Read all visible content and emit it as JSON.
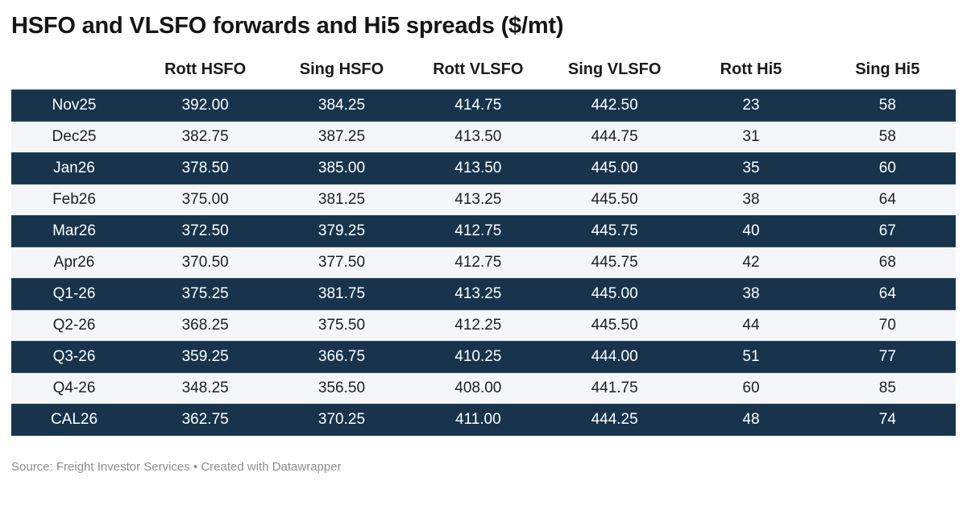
{
  "page": {
    "title": "HSFO and VLSFO forwards and Hi5 spreads ($/mt)",
    "footer": "Source: Freight Investor Services • Created with Datawrapper"
  },
  "colors": {
    "dark_row_bg": "#17344c",
    "dark_row_text": "#ffffff",
    "light_row_bg": "#f5f6f7",
    "light_row_text": "#202020",
    "header_text": "#1a1a1a",
    "footer_text": "#8e8e8e"
  },
  "chart_data": {
    "type": "table",
    "title": "HSFO and VLSFO forwards and Hi5 spreads ($/mt)",
    "source": "Freight Investor Services",
    "columns": [
      "",
      "Rott HSFO",
      "Sing HSFO",
      "Rott VLSFO",
      "Sing VLSFO",
      "Rott Hi5",
      "Sing Hi5"
    ],
    "rows": [
      [
        "Nov25",
        "392.00",
        "384.25",
        "414.75",
        "442.50",
        "23",
        "58"
      ],
      [
        "Dec25",
        "382.75",
        "387.25",
        "413.50",
        "444.75",
        "31",
        "58"
      ],
      [
        "Jan26",
        "378.50",
        "385.00",
        "413.50",
        "445.00",
        "35",
        "60"
      ],
      [
        "Feb26",
        "375.00",
        "381.25",
        "413.25",
        "445.50",
        "38",
        "64"
      ],
      [
        "Mar26",
        "372.50",
        "379.25",
        "412.75",
        "445.75",
        "40",
        "67"
      ],
      [
        "Apr26",
        "370.50",
        "377.50",
        "412.75",
        "445.75",
        "42",
        "68"
      ],
      [
        "Q1-26",
        "375.25",
        "381.75",
        "413.25",
        "445.00",
        "38",
        "64"
      ],
      [
        "Q2-26",
        "368.25",
        "375.50",
        "412.25",
        "445.50",
        "44",
        "70"
      ],
      [
        "Q3-26",
        "359.25",
        "366.75",
        "410.25",
        "444.00",
        "51",
        "77"
      ],
      [
        "Q4-26",
        "348.25",
        "356.50",
        "408.00",
        "441.75",
        "60",
        "85"
      ],
      [
        "CAL26",
        "362.75",
        "370.25",
        "411.00",
        "444.25",
        "48",
        "74"
      ]
    ],
    "layout_hints": {
      "striping": "rows 1,3,5,7,9,11 dark navy with white text; rows 2,4,6,8,10 light gray with dark text",
      "alignment": "all cells centered"
    }
  }
}
